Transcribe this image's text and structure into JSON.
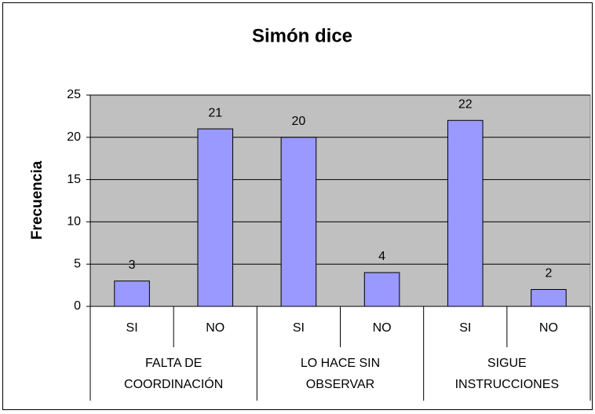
{
  "chart_data": {
    "type": "bar",
    "title": "Simón dice",
    "y_label": "Frecuencia",
    "categories": [
      "SI",
      "NO",
      "SI",
      "NO",
      "SI",
      "NO"
    ],
    "groups": [
      [
        "FALTA DE",
        "COORDINACIÓN"
      ],
      [
        "LO HACE SIN",
        "OBSERVAR"
      ],
      [
        "SIGUE",
        "INSTRUCCIONES"
      ]
    ],
    "values": [
      3,
      21,
      20,
      4,
      22,
      2
    ],
    "color": "#9999ff",
    "plot_background": "#c0c0c0",
    "ylim": [
      0,
      25
    ],
    "yticks": [
      0,
      5,
      10,
      15,
      20,
      25
    ],
    "grid": true
  }
}
